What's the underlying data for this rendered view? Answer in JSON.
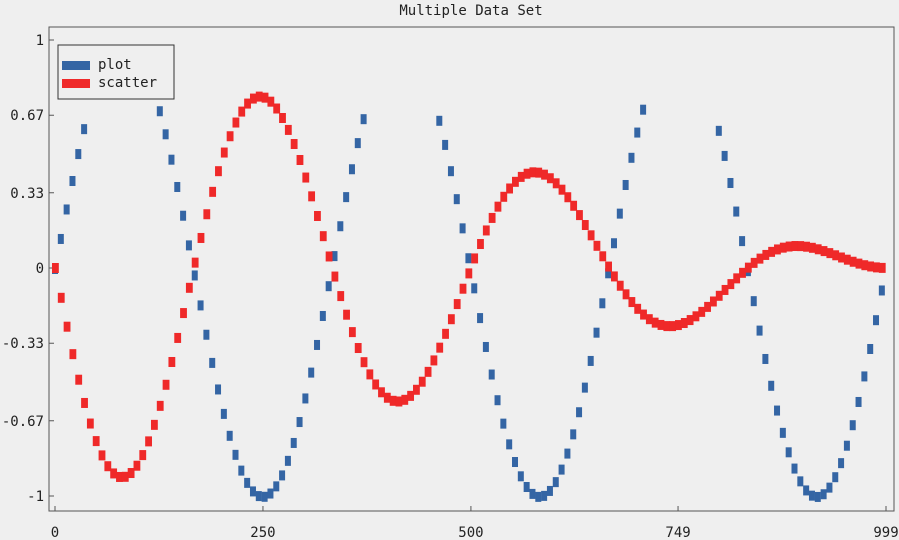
{
  "chart_data": {
    "type": "line",
    "title": "Multiple Data Set",
    "xlabel": "",
    "ylabel": "",
    "xlim": [
      0,
      999
    ],
    "ylim": [
      -1,
      1
    ],
    "x_ticks": [
      0,
      250,
      500,
      749,
      999
    ],
    "x_tick_labels": [
      "0",
      "250",
      "500",
      "749",
      "999"
    ],
    "y_ticks": [
      1,
      0.67,
      0.33,
      0,
      -0.33,
      -0.67,
      -1
    ],
    "y_tick_labels": [
      "1",
      "0.67",
      "0.33",
      "0",
      "-0.33",
      "-0.67",
      "-1"
    ],
    "grid": false,
    "legend": {
      "position": "top-left",
      "entries": [
        "plot",
        "scatter"
      ]
    },
    "series": [
      {
        "name": "plot",
        "color": "#3465a4",
        "style": "step-line",
        "formula": "sin(x * 2*pi * 3 / 999)",
        "x_range": [
          0,
          999
        ],
        "clip": [
          -1,
          0.7
        ],
        "sample_step": 7
      },
      {
        "name": "scatter",
        "color": "#ef2929",
        "style": "thick-markers",
        "formula": "-(1 - x/999) * sin(x * 2*pi * 3 / 999)",
        "x_range": [
          0,
          999
        ],
        "sample_step": 7
      }
    ]
  }
}
